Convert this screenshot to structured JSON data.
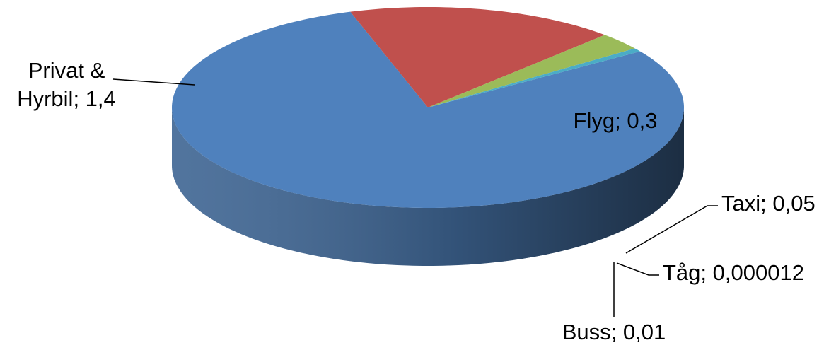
{
  "chart_data": {
    "type": "pie",
    "style": "3d",
    "title": "",
    "series": [
      {
        "name": "",
        "categories": [
          "Privat & Hyrbil",
          "Flyg",
          "Taxi",
          "Tåg",
          "Buss"
        ],
        "values": [
          1.4,
          0.3,
          0.05,
          1.2e-05,
          0.01
        ]
      }
    ],
    "data_labels": [
      {
        "category": "Privat & Hyrbil",
        "lines": [
          "Privat &",
          "Hyrbil; 1,4"
        ]
      },
      {
        "category": "Flyg",
        "lines": [
          "Flyg; 0,3"
        ]
      },
      {
        "category": "Taxi",
        "lines": [
          "Taxi; 0,05"
        ]
      },
      {
        "category": "Tåg",
        "lines": [
          "Tåg; 0,000012"
        ]
      },
      {
        "category": "Buss",
        "lines": [
          "Buss; 0,01"
        ]
      }
    ],
    "colors": {
      "Privat & Hyrbil": "#4F81BD",
      "Flyg": "#C0504D",
      "Taxi": "#9BBB59",
      "Tåg": "#8064A2",
      "Buss": "#4BACC6"
    },
    "legend": "none"
  }
}
